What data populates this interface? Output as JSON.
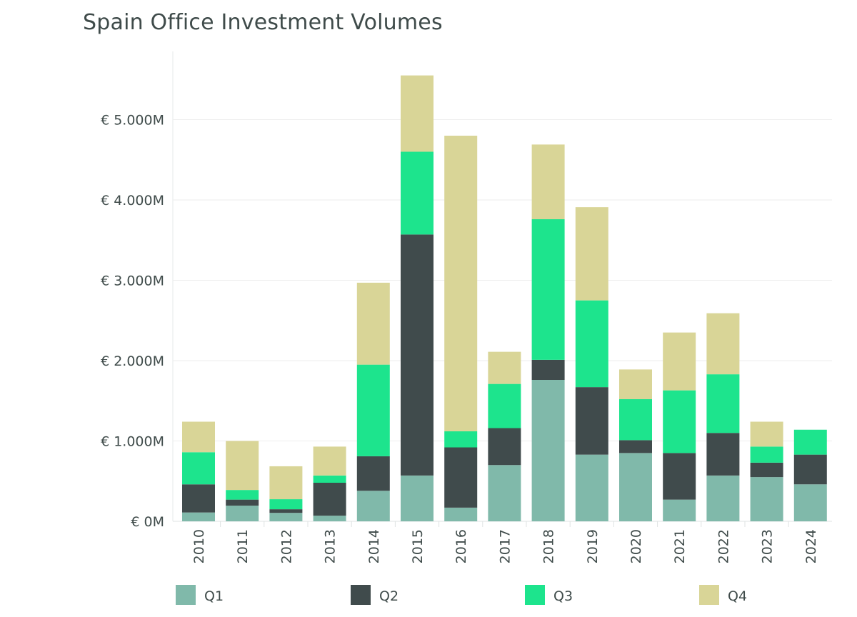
{
  "chart_data": {
    "type": "bar",
    "stacked": true,
    "title": "Spain Office Investment Volumes",
    "xlabel": "",
    "ylabel": "",
    "categories": [
      "2010",
      "2011",
      "2012",
      "2013",
      "2014",
      "2015",
      "2016",
      "2017",
      "2018",
      "2019",
      "2020",
      "2021",
      "2022",
      "2023",
      "2024"
    ],
    "series": [
      {
        "name": "Q1",
        "color": "#80b9aa",
        "values": [
          110,
          195,
          105,
          70,
          380,
          570,
          170,
          700,
          1760,
          830,
          850,
          270,
          570,
          550,
          460
        ]
      },
      {
        "name": "Q2",
        "color": "#404b4c",
        "values": [
          350,
          75,
          45,
          410,
          430,
          3000,
          750,
          460,
          250,
          840,
          160,
          580,
          530,
          180,
          370
        ]
      },
      {
        "name": "Q3",
        "color": "#1de48d",
        "values": [
          400,
          120,
          125,
          90,
          1140,
          1030,
          200,
          550,
          1750,
          1080,
          510,
          780,
          730,
          200,
          310
        ]
      },
      {
        "name": "Q4",
        "color": "#d9d597",
        "values": [
          380,
          610,
          410,
          360,
          1020,
          950,
          3680,
          400,
          930,
          1160,
          370,
          720,
          760,
          310,
          0
        ]
      }
    ],
    "ylim": [
      0,
      5600
    ],
    "yticks": [
      0,
      1000,
      2000,
      3000,
      4000,
      5000
    ],
    "ytick_labels": [
      "€ 0M",
      "€ 1.000M",
      "€ 2.000M",
      "€ 3.000M",
      "€ 4.000M",
      "€ 5.000M"
    ],
    "grid": true,
    "legend_position": "bottom"
  }
}
